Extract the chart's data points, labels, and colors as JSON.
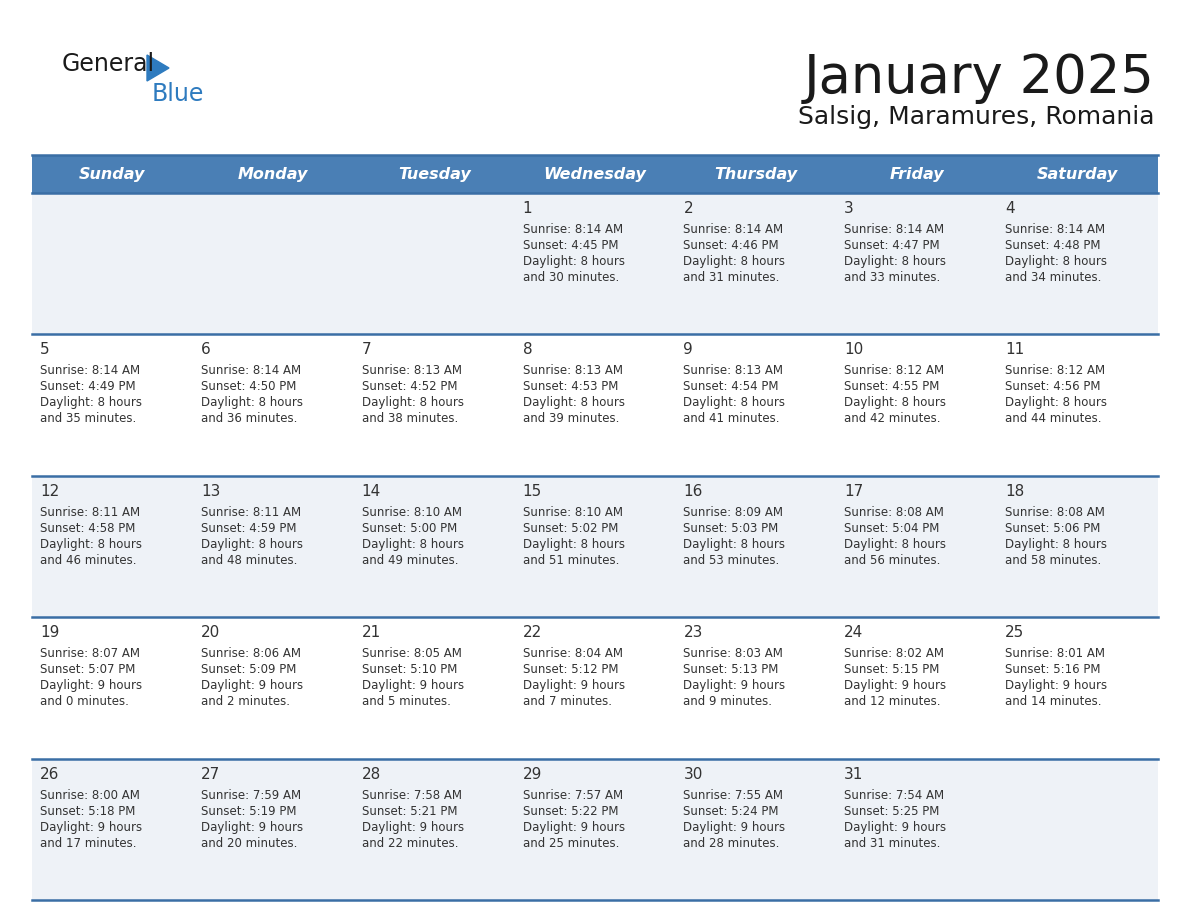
{
  "title": "January 2025",
  "subtitle": "Salsig, Maramures, Romania",
  "header_bg": "#4a7fb5",
  "header_text": "#ffffff",
  "row_bg_odd": "#eef2f7",
  "row_bg_even": "#ffffff",
  "text_color": "#333333",
  "border_color": "#3a6ea5",
  "day_headers": [
    "Sunday",
    "Monday",
    "Tuesday",
    "Wednesday",
    "Thursday",
    "Friday",
    "Saturday"
  ],
  "days": [
    {
      "date": "",
      "sunrise": "",
      "sunset": "",
      "daylight": ""
    },
    {
      "date": "",
      "sunrise": "",
      "sunset": "",
      "daylight": ""
    },
    {
      "date": "",
      "sunrise": "",
      "sunset": "",
      "daylight": ""
    },
    {
      "date": "1",
      "sunrise": "8:14 AM",
      "sunset": "4:45 PM",
      "daylight": "8 hours\nand 30 minutes."
    },
    {
      "date": "2",
      "sunrise": "8:14 AM",
      "sunset": "4:46 PM",
      "daylight": "8 hours\nand 31 minutes."
    },
    {
      "date": "3",
      "sunrise": "8:14 AM",
      "sunset": "4:47 PM",
      "daylight": "8 hours\nand 33 minutes."
    },
    {
      "date": "4",
      "sunrise": "8:14 AM",
      "sunset": "4:48 PM",
      "daylight": "8 hours\nand 34 minutes."
    },
    {
      "date": "5",
      "sunrise": "8:14 AM",
      "sunset": "4:49 PM",
      "daylight": "8 hours\nand 35 minutes."
    },
    {
      "date": "6",
      "sunrise": "8:14 AM",
      "sunset": "4:50 PM",
      "daylight": "8 hours\nand 36 minutes."
    },
    {
      "date": "7",
      "sunrise": "8:13 AM",
      "sunset": "4:52 PM",
      "daylight": "8 hours\nand 38 minutes."
    },
    {
      "date": "8",
      "sunrise": "8:13 AM",
      "sunset": "4:53 PM",
      "daylight": "8 hours\nand 39 minutes."
    },
    {
      "date": "9",
      "sunrise": "8:13 AM",
      "sunset": "4:54 PM",
      "daylight": "8 hours\nand 41 minutes."
    },
    {
      "date": "10",
      "sunrise": "8:12 AM",
      "sunset": "4:55 PM",
      "daylight": "8 hours\nand 42 minutes."
    },
    {
      "date": "11",
      "sunrise": "8:12 AM",
      "sunset": "4:56 PM",
      "daylight": "8 hours\nand 44 minutes."
    },
    {
      "date": "12",
      "sunrise": "8:11 AM",
      "sunset": "4:58 PM",
      "daylight": "8 hours\nand 46 minutes."
    },
    {
      "date": "13",
      "sunrise": "8:11 AM",
      "sunset": "4:59 PM",
      "daylight": "8 hours\nand 48 minutes."
    },
    {
      "date": "14",
      "sunrise": "8:10 AM",
      "sunset": "5:00 PM",
      "daylight": "8 hours\nand 49 minutes."
    },
    {
      "date": "15",
      "sunrise": "8:10 AM",
      "sunset": "5:02 PM",
      "daylight": "8 hours\nand 51 minutes."
    },
    {
      "date": "16",
      "sunrise": "8:09 AM",
      "sunset": "5:03 PM",
      "daylight": "8 hours\nand 53 minutes."
    },
    {
      "date": "17",
      "sunrise": "8:08 AM",
      "sunset": "5:04 PM",
      "daylight": "8 hours\nand 56 minutes."
    },
    {
      "date": "18",
      "sunrise": "8:08 AM",
      "sunset": "5:06 PM",
      "daylight": "8 hours\nand 58 minutes."
    },
    {
      "date": "19",
      "sunrise": "8:07 AM",
      "sunset": "5:07 PM",
      "daylight": "9 hours\nand 0 minutes."
    },
    {
      "date": "20",
      "sunrise": "8:06 AM",
      "sunset": "5:09 PM",
      "daylight": "9 hours\nand 2 minutes."
    },
    {
      "date": "21",
      "sunrise": "8:05 AM",
      "sunset": "5:10 PM",
      "daylight": "9 hours\nand 5 minutes."
    },
    {
      "date": "22",
      "sunrise": "8:04 AM",
      "sunset": "5:12 PM",
      "daylight": "9 hours\nand 7 minutes."
    },
    {
      "date": "23",
      "sunrise": "8:03 AM",
      "sunset": "5:13 PM",
      "daylight": "9 hours\nand 9 minutes."
    },
    {
      "date": "24",
      "sunrise": "8:02 AM",
      "sunset": "5:15 PM",
      "daylight": "9 hours\nand 12 minutes."
    },
    {
      "date": "25",
      "sunrise": "8:01 AM",
      "sunset": "5:16 PM",
      "daylight": "9 hours\nand 14 minutes."
    },
    {
      "date": "26",
      "sunrise": "8:00 AM",
      "sunset": "5:18 PM",
      "daylight": "9 hours\nand 17 minutes."
    },
    {
      "date": "27",
      "sunrise": "7:59 AM",
      "sunset": "5:19 PM",
      "daylight": "9 hours\nand 20 minutes."
    },
    {
      "date": "28",
      "sunrise": "7:58 AM",
      "sunset": "5:21 PM",
      "daylight": "9 hours\nand 22 minutes."
    },
    {
      "date": "29",
      "sunrise": "7:57 AM",
      "sunset": "5:22 PM",
      "daylight": "9 hours\nand 25 minutes."
    },
    {
      "date": "30",
      "sunrise": "7:55 AM",
      "sunset": "5:24 PM",
      "daylight": "9 hours\nand 28 minutes."
    },
    {
      "date": "31",
      "sunrise": "7:54 AM",
      "sunset": "5:25 PM",
      "daylight": "9 hours\nand 31 minutes."
    },
    {
      "date": "",
      "sunrise": "",
      "sunset": "",
      "daylight": ""
    }
  ],
  "logo_general_color": "#1a1a1a",
  "logo_blue_color": "#2e7bbf",
  "logo_triangle_color": "#2e7bbf",
  "title_color": "#1a1a1a",
  "subtitle_color": "#1a1a1a",
  "title_fontsize": 38,
  "subtitle_fontsize": 18,
  "header_fontsize": 11.5,
  "date_fontsize": 11,
  "cell_fontsize": 8.5
}
